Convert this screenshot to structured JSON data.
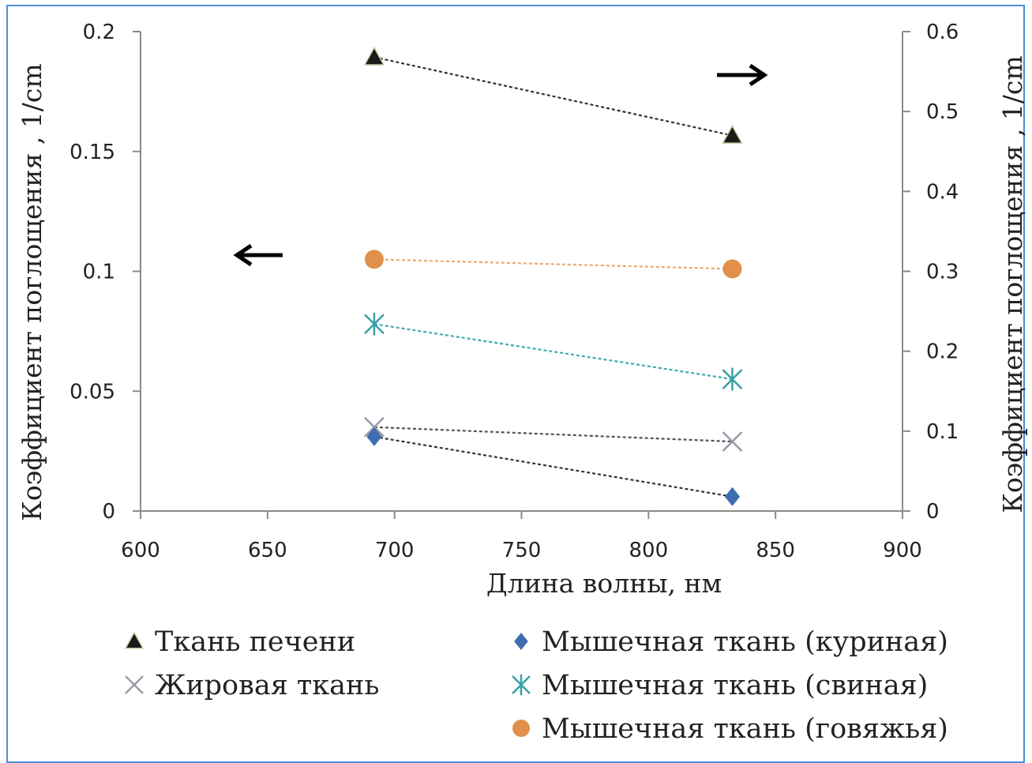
{
  "chart_data": {
    "type": "scatter",
    "xlabel": "Длина волны, нм",
    "ylabel_left": "Коэффициент поглощения , 1/cm",
    "ylabel_right": "Коэффициент поглощения , 1/cm",
    "xlim": [
      600,
      900
    ],
    "ylim_left": [
      0,
      0.2
    ],
    "ylim_right": [
      0,
      0.6
    ],
    "x_ticks": [
      "600",
      "650",
      "700",
      "750",
      "800",
      "850",
      "900"
    ],
    "y_ticks_left": [
      "0",
      "0.05",
      "0.1",
      "0.15",
      "0.2"
    ],
    "y_ticks_right": [
      "0",
      "0.1",
      "0.2",
      "0.3",
      "0.4",
      "0.5",
      "0.6"
    ],
    "grid": false,
    "legend_position": "bottom",
    "series": [
      {
        "name": "Ткань печени",
        "axis": "right",
        "marker": "triangle",
        "color": "#1a1a1a",
        "line_color": "#333333",
        "x": [
          692,
          833
        ],
        "y": [
          0.568,
          0.47
        ]
      },
      {
        "name": "Жировая ткань",
        "axis": "left",
        "marker": "x",
        "color": "#9a9aa8",
        "line_color": "#555555",
        "x": [
          692,
          833
        ],
        "y": [
          0.035,
          0.029
        ]
      },
      {
        "name": "Мышечная ткань (куриная)",
        "axis": "left",
        "marker": "diamond",
        "color": "#3f6eb0",
        "line_color": "#333344",
        "x": [
          692,
          833
        ],
        "y": [
          0.031,
          0.006
        ]
      },
      {
        "name": "Мышечная ткань (свиная)",
        "axis": "left",
        "marker": "asterisk",
        "color": "#3aa0a8",
        "line_color": "#40a8b0",
        "x": [
          692,
          833
        ],
        "y": [
          0.078,
          0.055
        ]
      },
      {
        "name": "Мышечная ткань (говяжья)",
        "axis": "left",
        "marker": "circle",
        "color": "#e0904a",
        "line_color": "#e8a870",
        "x": [
          692,
          833
        ],
        "y": [
          0.105,
          0.101
        ]
      }
    ],
    "annotations": [
      {
        "type": "arrow",
        "direction": "right",
        "refers_to_axis": "right",
        "position": "top-right"
      },
      {
        "type": "arrow",
        "direction": "left",
        "refers_to_axis": "left",
        "position": "center-left"
      }
    ]
  }
}
